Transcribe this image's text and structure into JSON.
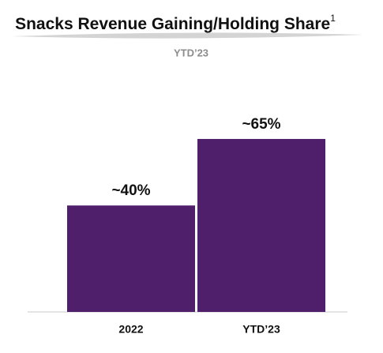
{
  "chart_data": {
    "type": "bar",
    "title": "Snacks Revenue Gaining/Holding Share",
    "title_superscript": "1",
    "subtitle": "YTD’23",
    "categories": [
      "2022",
      "YTD’23"
    ],
    "values": [
      40,
      65
    ],
    "value_labels": [
      "~40%",
      "~65%"
    ],
    "color": "#4f1f6b"
  }
}
